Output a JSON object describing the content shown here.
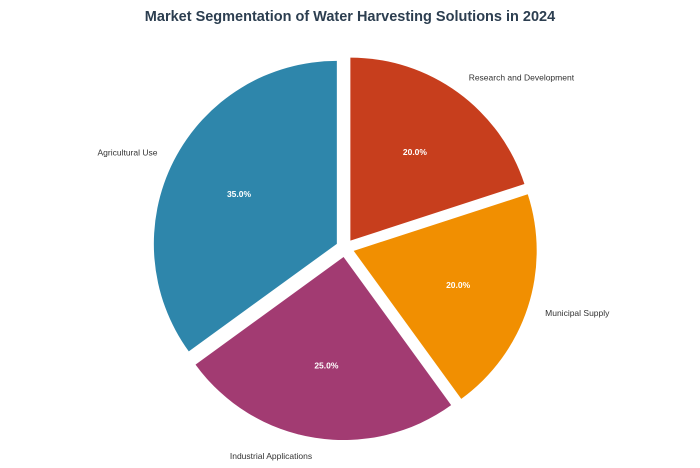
{
  "chart_data": {
    "type": "pie",
    "title": "Market Segmentation of Water Harvesting Solutions in 2024",
    "categories": [
      "Agricultural Use",
      "Industrial Applications",
      "Municipal Supply",
      "Research and Development"
    ],
    "values": [
      35.0,
      25.0,
      20.0,
      20.0
    ],
    "percent_labels": [
      "35.0%",
      "25.0%",
      "20.0%",
      "20.0%"
    ],
    "colors": [
      "#2e86ab",
      "#a23b72",
      "#f18f01",
      "#c73e1d"
    ],
    "explode": [
      0.05,
      0.05,
      0.05,
      0.05
    ],
    "start_angle_deg": 90,
    "direction": "counterclockwise",
    "legend": "none"
  }
}
